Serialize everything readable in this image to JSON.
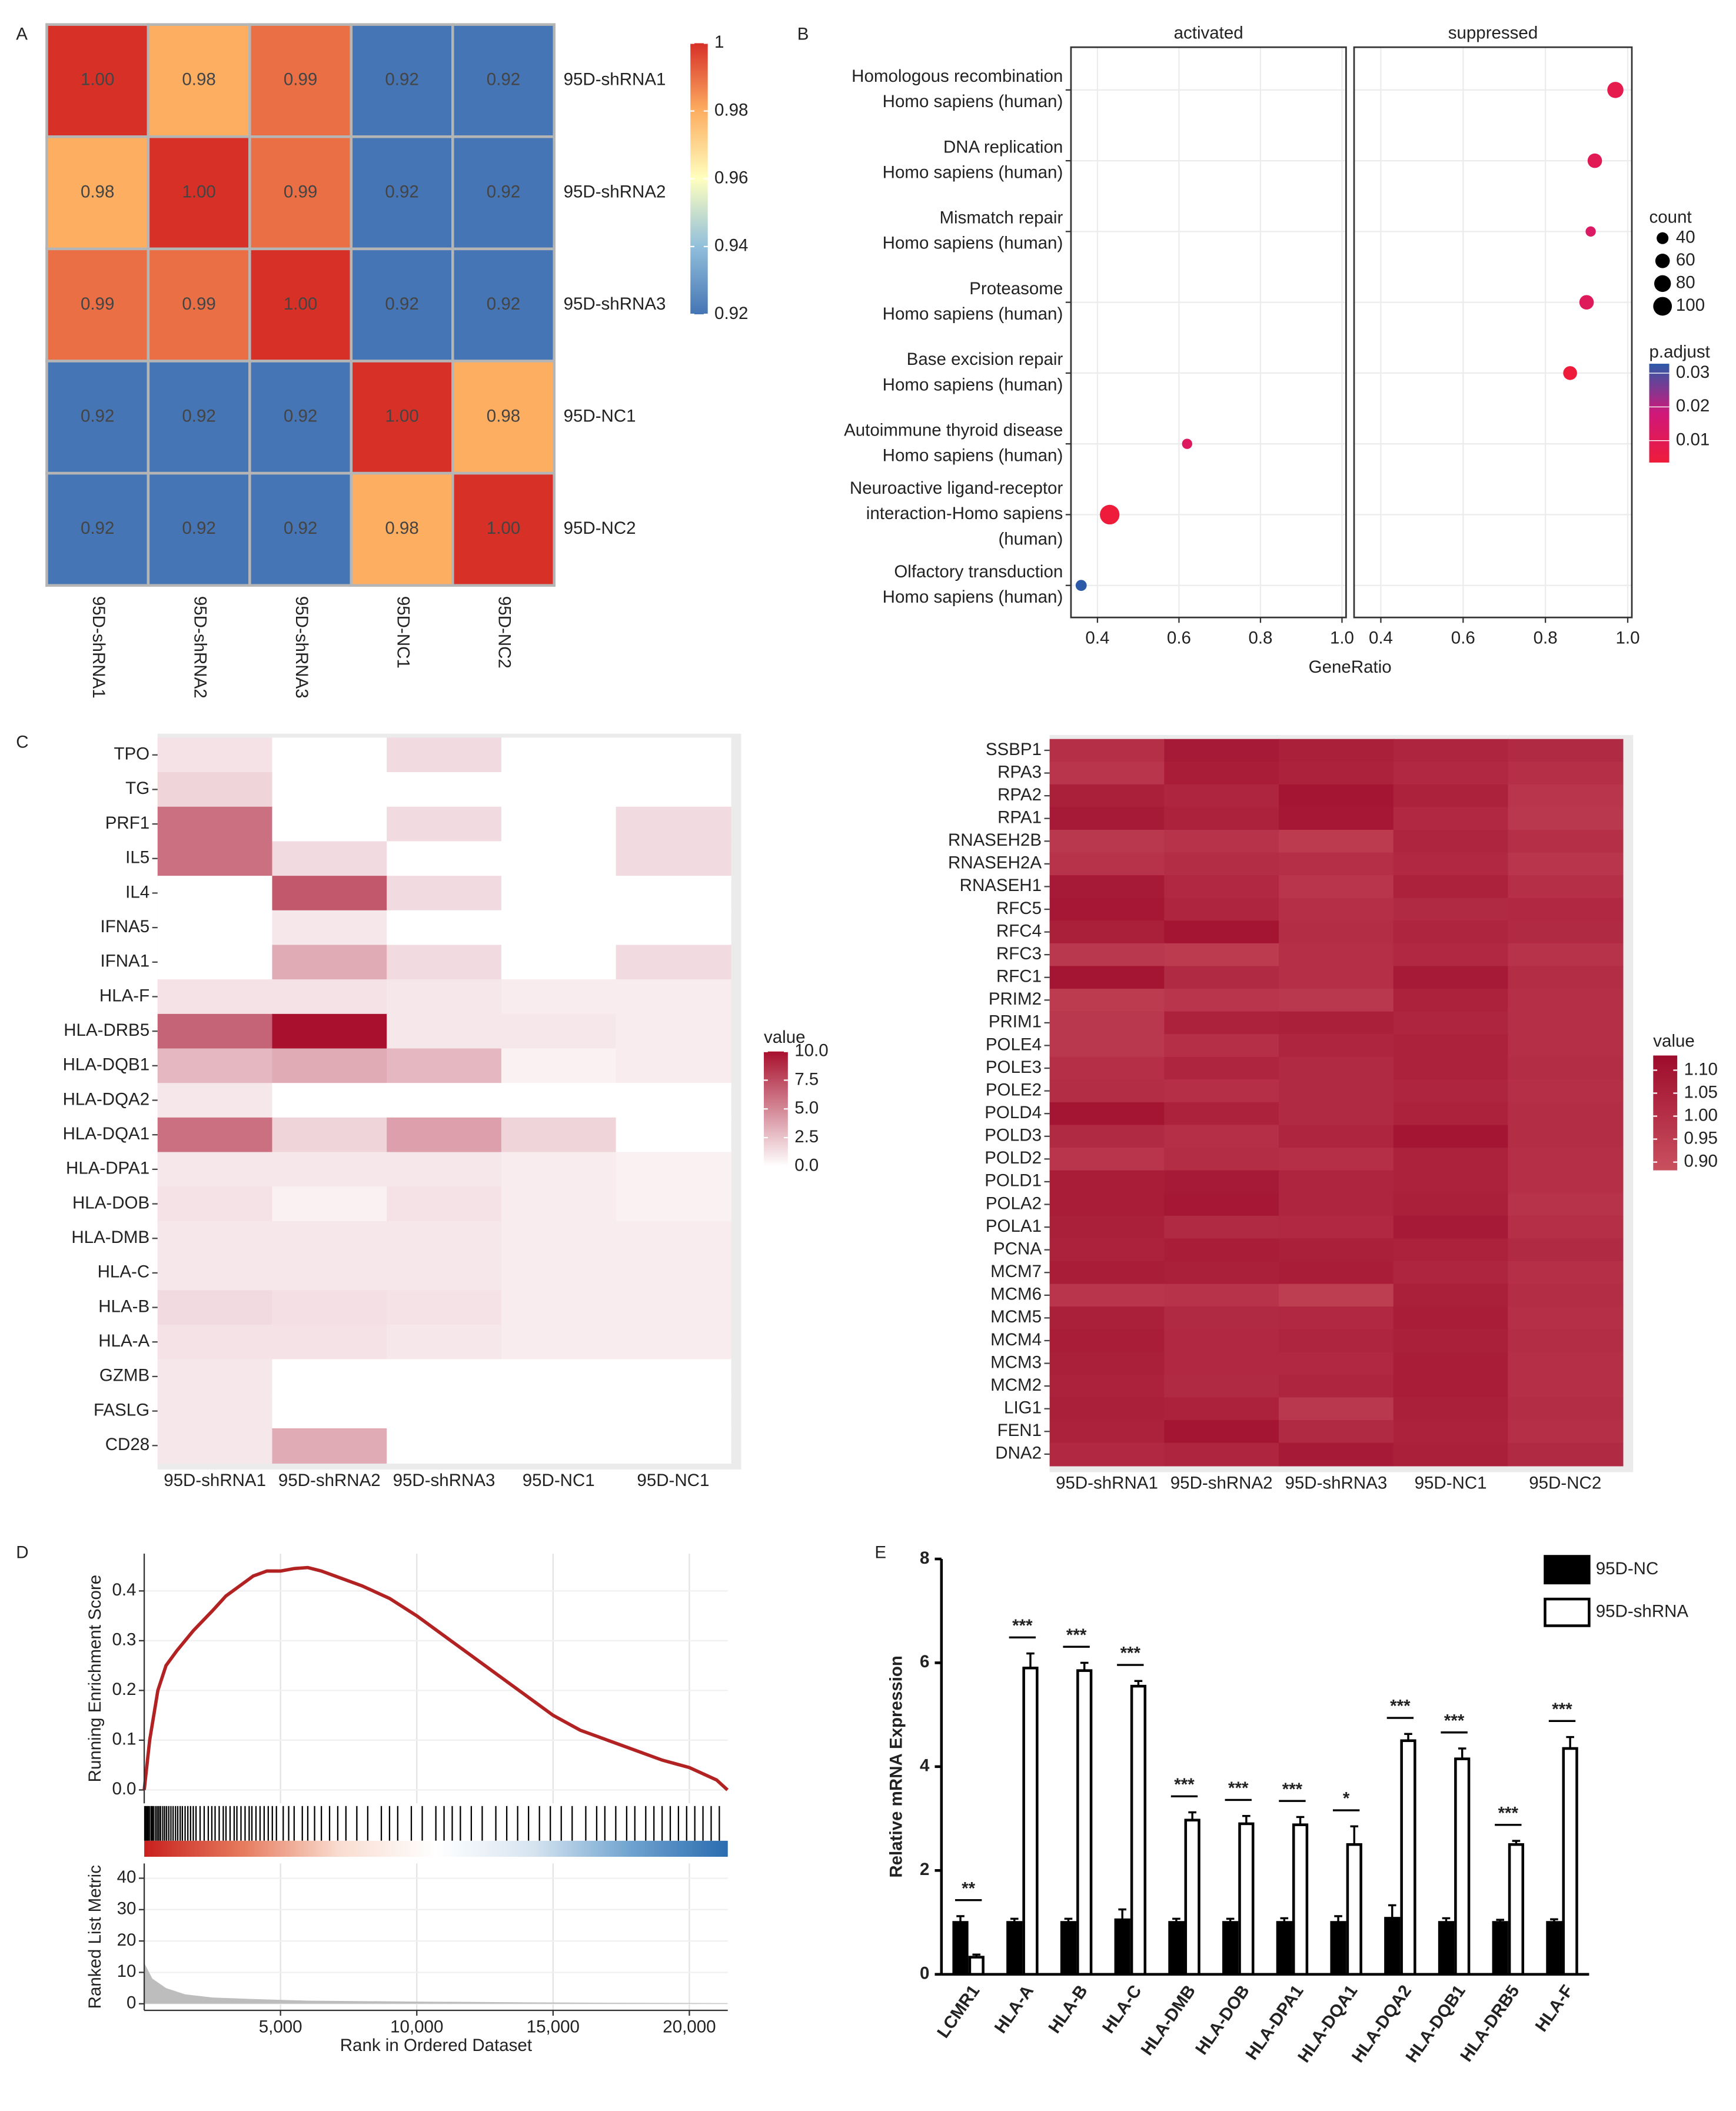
{
  "chart_data": [
    {
      "type": "heatmap",
      "panel": "A",
      "rows": [
        "95D-shRNA1",
        "95D-shRNA2",
        "95D-shRNA3",
        "95D-NC1",
        "95D-NC2"
      ],
      "columns": [
        "95D-shRNA1",
        "95D-shRNA2",
        "95D-shRNA3",
        "95D-NC1",
        "95D-NC2"
      ],
      "values": [
        [
          1,
          0.98,
          0.99,
          0.92,
          0.92
        ],
        [
          0.98,
          1,
          0.99,
          0.92,
          0.92
        ],
        [
          0.99,
          0.99,
          1,
          0.92,
          0.92
        ],
        [
          0.92,
          0.92,
          0.92,
          1,
          0.98
        ],
        [
          0.92,
          0.92,
          0.92,
          0.98,
          1
        ]
      ],
      "value_labels": [
        [
          "1.00",
          "0.98",
          "0.99",
          "0.92",
          "0.92"
        ],
        [
          "0.98",
          "1.00",
          "0.99",
          "0.92",
          "0.92"
        ],
        [
          "0.99",
          "0.99",
          "1.00",
          "0.92",
          "0.92"
        ],
        [
          "0.92",
          "0.92",
          "0.92",
          "1.00",
          "0.98"
        ],
        [
          "0.92",
          "0.92",
          "0.92",
          "0.98",
          "1.00"
        ]
      ],
      "colors": [
        "#4575b4",
        "#91bfdb",
        "#ffffbf",
        "#fdae61",
        "#d73027"
      ],
      "clim": [
        0.92,
        1
      ],
      "cticks": [
        0.92,
        0.94,
        0.96,
        0.98,
        1
      ]
    },
    {
      "type": "dot",
      "panel": "B",
      "categories": [
        [
          "Homologous recombination",
          "Homo sapiens (human)"
        ],
        [
          "DNA replication",
          "Homo sapiens (human)"
        ],
        [
          "Mismatch repair",
          "Homo sapiens (human)"
        ],
        [
          "Proteasome",
          "Homo sapiens (human)"
        ],
        [
          "Base excision repair",
          "Homo sapiens (human)"
        ],
        [
          "Autoimmune thyroid disease",
          "Homo sapiens (human)"
        ],
        [
          "Neuroactive ligand-receptor",
          "interaction-Homo sapiens",
          "(human)"
        ],
        [
          "Olfactory transduction",
          "Homo sapiens (human)"
        ]
      ],
      "series": [
        {
          "name": "activated",
          "values": [
            null,
            null,
            null,
            null,
            null,
            0.62,
            0.43,
            0.36
          ]
        },
        {
          "name": "suppressed",
          "values": [
            0.97,
            0.92,
            0.91,
            0.9,
            0.86,
            null,
            null,
            null
          ]
        }
      ],
      "count": [
        75,
        60,
        30,
        60,
        55,
        30,
        110,
        35
      ],
      "p_adjust": [
        0.008,
        0.01,
        0.013,
        0.011,
        0.003,
        0.012,
        0.002,
        0.033
      ],
      "xlim": [
        0.335,
        1.01
      ],
      "xticks": [
        0.4,
        0.6,
        0.8,
        {
          "value": 1,
          "label": "1.0"
        }
      ],
      "xlabel": "GeneRatio",
      "size_legend": {
        "title": "count",
        "values": [
          40,
          60,
          80,
          100
        ]
      },
      "color_legend": {
        "title": "p.adjust",
        "ticks": [
          0.01,
          0.02,
          0.03
        ]
      },
      "colors": [
        "#ee1c3a",
        "#d0187a",
        "#2c5aa8"
      ],
      "clim": [
        0.0035,
        0.0328
      ]
    },
    {
      "type": "heatmap",
      "panel": "C",
      "rows": [
        "TPO",
        "TG",
        "PRF1",
        "IL5",
        "IL4",
        "IFNA5",
        "IFNA1",
        "HLA-F",
        "HLA-DRB5",
        "HLA-DQB1",
        "HLA-DQA2",
        "HLA-DQA1",
        "HLA-DPA1",
        "HLA-DOB",
        "HLA-DMB",
        "HLA-C",
        "HLA-B",
        "HLA-A",
        "GZMB",
        "FASLG",
        "CD28"
      ],
      "columns": [
        "95D-shRNA1",
        "95D-shRNA2",
        "95D-shRNA3",
        "95D-NC1",
        "95D-NC1"
      ],
      "values": [
        [
          1.2,
          0,
          1.5,
          0,
          0
        ],
        [
          1.8,
          0,
          0,
          0,
          0
        ],
        [
          6,
          0,
          1.5,
          0,
          1.5
        ],
        [
          6,
          1.5,
          0,
          0,
          1.5
        ],
        [
          0,
          7,
          1.5,
          0,
          0
        ],
        [
          0,
          1,
          0,
          0,
          0
        ],
        [
          0,
          3.5,
          1.5,
          0,
          1.5
        ],
        [
          1.2,
          1.2,
          1,
          0.8,
          0.8
        ],
        [
          6.5,
          10,
          1,
          1,
          0.8
        ],
        [
          3,
          3.5,
          3,
          0.6,
          0.8
        ],
        [
          1,
          0,
          0,
          0,
          0
        ],
        [
          6,
          1.8,
          4,
          1.8,
          0
        ],
        [
          1,
          1,
          1,
          0.8,
          0.6
        ],
        [
          1.2,
          0.6,
          1.2,
          0.8,
          0.6
        ],
        [
          1,
          1,
          1,
          0.8,
          0.8
        ],
        [
          1,
          1,
          1,
          0.8,
          0.8
        ],
        [
          1.5,
          1.3,
          1.2,
          0.8,
          0.8
        ],
        [
          1.2,
          1.2,
          1,
          0.8,
          0.8
        ],
        [
          1,
          0,
          0,
          0,
          0
        ],
        [
          1,
          0,
          0,
          0,
          0
        ],
        [
          1,
          3.5,
          0,
          0,
          0
        ]
      ],
      "colors": [
        "#ffffff",
        "#a8102d"
      ],
      "clim": [
        0,
        10
      ],
      "legend_title": "value",
      "cticks": [
        {
          "value": 0,
          "label": "0.0"
        },
        2.5,
        {
          "value": 5,
          "label": "5.0"
        },
        7.5,
        {
          "value": 10,
          "label": "10.0"
        }
      ]
    },
    {
      "type": "heatmap",
      "rows": [
        "SSBP1",
        "RPA3",
        "RPA2",
        "RPA1",
        "RNASEH2B",
        "RNASEH2A",
        "RNASEH1",
        "RFC5",
        "RFC4",
        "RFC3",
        "RFC1",
        "PRIM2",
        "PRIM1",
        "POLE4",
        "POLE3",
        "POLE2",
        "POLD4",
        "POLD3",
        "POLD2",
        "POLD1",
        "POLA2",
        "POLA1",
        "PCNA",
        "MCM7",
        "MCM6",
        "MCM5",
        "MCM4",
        "MCM3",
        "MCM2",
        "LIG1",
        "FEN1",
        "DNA2"
      ],
      "columns": [
        "95D-shRNA1",
        "95D-shRNA2",
        "95D-shRNA3",
        "95D-NC1",
        "95D-NC2"
      ],
      "values": [
        [
          1.0,
          1.08,
          1.06,
          1.04,
          1.02
        ],
        [
          0.98,
          1.07,
          1.05,
          1.03,
          1.0
        ],
        [
          1.06,
          1.04,
          1.1,
          1.05,
          0.98
        ],
        [
          1.08,
          1.05,
          1.09,
          1.03,
          0.97
        ],
        [
          0.97,
          0.99,
          0.96,
          1.04,
          1.0
        ],
        [
          0.99,
          1.01,
          1.0,
          1.03,
          0.98
        ],
        [
          1.08,
          1.03,
          0.98,
          1.05,
          1.0
        ],
        [
          1.09,
          1.04,
          1.0,
          1.02,
          1.03
        ],
        [
          1.06,
          1.1,
          1.01,
          1.04,
          1.02
        ],
        [
          0.97,
          0.96,
          1.0,
          1.03,
          0.99
        ],
        [
          1.1,
          1.02,
          1.0,
          1.08,
          1.01
        ],
        [
          0.96,
          0.98,
          0.97,
          1.05,
          1.0
        ],
        [
          0.97,
          1.05,
          1.06,
          1.04,
          1.0
        ],
        [
          0.97,
          1.0,
          1.04,
          1.05,
          1.0
        ],
        [
          1.0,
          1.04,
          1.02,
          1.05,
          1.01
        ],
        [
          1.01,
          1.0,
          1.02,
          1.04,
          1.0
        ],
        [
          1.1,
          1.05,
          1.02,
          1.05,
          1.01
        ],
        [
          1.02,
          1.0,
          1.04,
          1.1,
          1.01
        ],
        [
          0.98,
          1.01,
          1.0,
          1.05,
          1.0
        ],
        [
          1.07,
          1.08,
          1.04,
          1.05,
          1.0
        ],
        [
          1.07,
          1.09,
          1.04,
          1.06,
          0.99
        ],
        [
          1.06,
          1.02,
          1.03,
          1.08,
          1.0
        ],
        [
          1.05,
          1.07,
          1.06,
          1.05,
          1.02
        ],
        [
          1.07,
          1.06,
          1.07,
          1.04,
          1.0
        ],
        [
          0.98,
          0.99,
          0.95,
          1.06,
          1.01
        ],
        [
          1.06,
          1.02,
          1.03,
          1.07,
          1.0
        ],
        [
          1.07,
          1.03,
          1.04,
          1.06,
          1.01
        ],
        [
          1.06,
          1.03,
          1.03,
          1.07,
          1.0
        ],
        [
          1.05,
          1.02,
          1.04,
          1.07,
          1.0
        ],
        [
          1.06,
          1.05,
          0.97,
          1.06,
          1.01
        ],
        [
          1.05,
          1.1,
          1.02,
          1.05,
          1.0
        ],
        [
          1.03,
          1.04,
          1.08,
          1.06,
          1.02
        ]
      ],
      "colors": [
        "#c9505f",
        "#9e0c2c"
      ],
      "clim": [
        0.882,
        1.132
      ],
      "legend_title": "value",
      "cticks": [
        {
          "value": 0.9,
          "label": "0.90"
        },
        0.95,
        {
          "value": 1,
          "label": "1.00"
        },
        1.05,
        {
          "value": 1.1,
          "label": "1.10"
        }
      ]
    },
    {
      "type": "gsea",
      "panel": "D",
      "x": [
        0,
        200,
        500,
        800,
        1200,
        1800,
        2500,
        3000,
        3500,
        4000,
        4500,
        5000,
        5500,
        6000,
        6500,
        7000,
        8000,
        9000,
        10000,
        11000,
        12000,
        13000,
        14000,
        15000,
        16000,
        17000,
        18000,
        19000,
        20000,
        21000,
        21400
      ],
      "values": [
        0,
        0.1,
        0.2,
        0.25,
        0.28,
        0.32,
        0.36,
        0.39,
        0.41,
        0.43,
        0.44,
        0.44,
        0.445,
        0.447,
        0.44,
        0.43,
        0.41,
        0.385,
        0.35,
        0.31,
        0.27,
        0.23,
        0.19,
        0.15,
        0.12,
        0.1,
        0.08,
        0.06,
        0.045,
        0.02,
        0
      ],
      "color": "#b22222",
      "hits": [
        20,
        60,
        110,
        150,
        200,
        260,
        300,
        350,
        420,
        480,
        540,
        600,
        680,
        750,
        820,
        900,
        980,
        1060,
        1150,
        1230,
        1320,
        1400,
        1500,
        1600,
        1700,
        1800,
        1900,
        2050,
        2200,
        2350,
        2480,
        2600,
        2750,
        2900,
        3000,
        3150,
        3300,
        3400,
        3550,
        3700,
        3850,
        3950,
        4100,
        4250,
        4400,
        4550,
        4700,
        4850,
        5100,
        5300,
        5500,
        5800,
        6000,
        6250,
        6500,
        6800,
        7100,
        7400,
        7800,
        8200,
        8700,
        9000,
        9300,
        9800,
        10200,
        10700,
        11000,
        11300,
        11600,
        12000,
        12400,
        12900,
        13300,
        13700,
        14100,
        14500,
        14900,
        15300,
        15700,
        16200,
        16600,
        16900,
        17300,
        17700,
        18000,
        18400,
        18700,
        19000,
        19300,
        19600,
        19900,
        20200,
        20500,
        20800,
        21100
      ],
      "metric_x": [
        0,
        300,
        800,
        1500,
        2500,
        4000,
        6000,
        10000,
        15000,
        21400
      ],
      "metric": [
        13,
        8,
        5,
        3,
        2,
        1.5,
        1,
        0.7,
        0.4,
        0.2
      ],
      "xlim": [
        0,
        21410
      ],
      "xticks": [
        {
          "value": 5000,
          "label": "5,000"
        },
        {
          "value": 10000,
          "label": "10,000"
        },
        {
          "value": 15000,
          "label": "15,000"
        },
        {
          "value": 20000,
          "label": "20,000"
        }
      ],
      "ylim": [
        -0.027,
        0.475
      ],
      "yticks": [
        {
          "value": 0,
          "label": "0.0"
        },
        0.1,
        0.2,
        0.3,
        0.4
      ],
      "metric_ylim": [
        -2.1,
        44.7
      ],
      "metric_yticks": [
        0,
        10,
        20,
        30,
        40
      ],
      "ylabel": "Running Enrichment Score",
      "metric_ylabel": "Ranked List Metric",
      "xlabel": "Rank in Ordered Dataset"
    },
    {
      "type": "bar",
      "panel": "E",
      "categories": [
        "LCMR1",
        "HLA-A",
        "HLA-B",
        "HLA-C",
        "HLA-DMB",
        "HLA-DOB",
        "HLA-DPA1",
        "HLA-DQA1",
        "HLA-DQA2",
        "HLA-DQB1",
        "HLA-DRB5",
        "HLA-F"
      ],
      "series": [
        {
          "name": "95D-NC",
          "color": "#000000",
          "values": [
            1.0,
            1.0,
            1.0,
            1.05,
            1.0,
            1.0,
            1.0,
            1.0,
            1.08,
            1.0,
            1.0,
            1.0
          ],
          "errors": [
            0.12,
            0.07,
            0.07,
            0.2,
            0.07,
            0.07,
            0.08,
            0.12,
            0.25,
            0.08,
            0.05,
            0.06
          ]
        },
        {
          "name": "95D-shRNA",
          "color": "#ffffff",
          "values": [
            0.33,
            5.9,
            5.85,
            5.55,
            2.97,
            2.9,
            2.88,
            2.5,
            4.5,
            4.15,
            2.5,
            4.35
          ],
          "errors": [
            0.05,
            0.28,
            0.15,
            0.1,
            0.15,
            0.15,
            0.15,
            0.35,
            0.13,
            0.2,
            0.07,
            0.22
          ]
        }
      ],
      "annotations": [
        "**",
        "***",
        "***",
        "***",
        "***",
        "***",
        "***",
        "*",
        "***",
        "***",
        "***",
        "***"
      ],
      "ylim": [
        0,
        8
      ],
      "yticks": [
        0,
        2,
        4,
        6,
        8
      ],
      "ylabel": "Relative mRNA Expression"
    }
  ]
}
